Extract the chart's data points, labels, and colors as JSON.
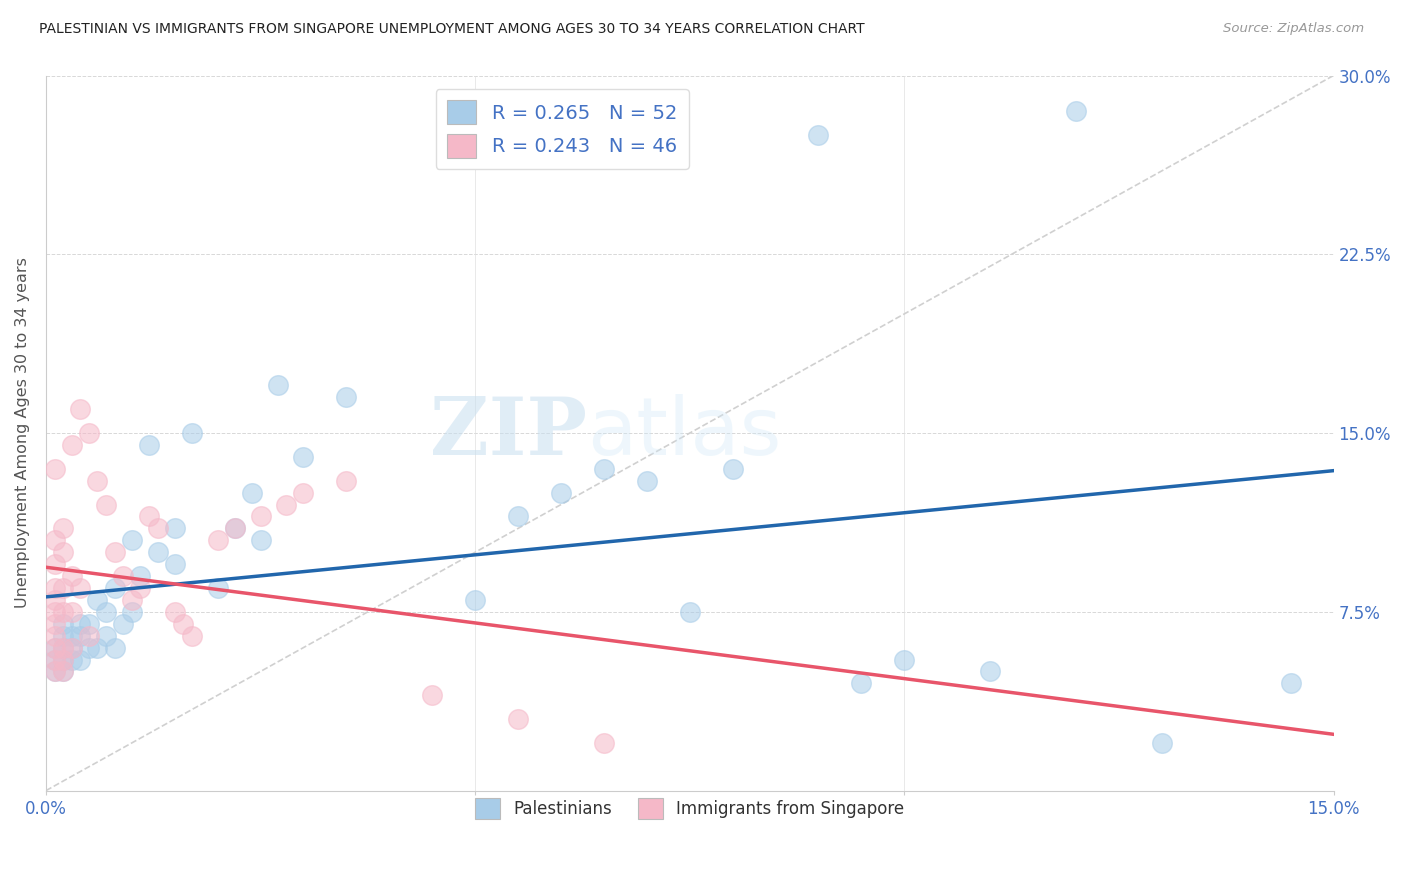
{
  "title": "PALESTINIAN VS IMMIGRANTS FROM SINGAPORE UNEMPLOYMENT AMONG AGES 30 TO 34 YEARS CORRELATION CHART",
  "source": "Source: ZipAtlas.com",
  "ylabel": "Unemployment Among Ages 30 to 34 years",
  "xlim": [
    0.0,
    15.0
  ],
  "ylim": [
    0.0,
    30.0
  ],
  "legend1_R": "R = 0.265",
  "legend1_N": "N = 52",
  "legend2_R": "R = 0.243",
  "legend2_N": "N = 46",
  "blue_color": "#a8cce8",
  "pink_color": "#f5b8c8",
  "blue_line_color": "#2166ac",
  "pink_line_color": "#e8556a",
  "watermark_zip": "ZIP",
  "watermark_atlas": "atlas",
  "palestinians_x": [
    0.1,
    0.1,
    0.1,
    0.2,
    0.2,
    0.2,
    0.2,
    0.2,
    0.3,
    0.3,
    0.3,
    0.4,
    0.4,
    0.4,
    0.5,
    0.5,
    0.6,
    0.6,
    0.7,
    0.7,
    0.8,
    0.8,
    0.9,
    1.0,
    1.0,
    1.1,
    1.2,
    1.3,
    1.5,
    1.5,
    1.7,
    2.0,
    2.2,
    2.4,
    2.5,
    2.7,
    3.0,
    3.5,
    5.0,
    5.5,
    6.0,
    6.5,
    7.0,
    7.5,
    8.0,
    9.0,
    9.5,
    10.0,
    11.0,
    12.0,
    13.0,
    14.5
  ],
  "palestinians_y": [
    5.0,
    5.5,
    6.0,
    5.0,
    5.5,
    6.0,
    6.5,
    7.0,
    5.5,
    6.0,
    6.5,
    5.5,
    6.5,
    7.0,
    6.0,
    7.0,
    6.0,
    8.0,
    6.5,
    7.5,
    6.0,
    8.5,
    7.0,
    7.5,
    10.5,
    9.0,
    14.5,
    10.0,
    9.5,
    11.0,
    15.0,
    8.5,
    11.0,
    12.5,
    10.5,
    17.0,
    14.0,
    16.5,
    8.0,
    11.5,
    12.5,
    13.5,
    13.0,
    7.5,
    13.5,
    27.5,
    4.5,
    5.5,
    5.0,
    28.5,
    2.0,
    4.5
  ],
  "singapore_x": [
    0.1,
    0.1,
    0.1,
    0.1,
    0.1,
    0.1,
    0.1,
    0.1,
    0.1,
    0.1,
    0.1,
    0.2,
    0.2,
    0.2,
    0.2,
    0.2,
    0.2,
    0.2,
    0.3,
    0.3,
    0.3,
    0.3,
    0.4,
    0.4,
    0.5,
    0.5,
    0.6,
    0.7,
    0.8,
    0.9,
    1.0,
    1.1,
    1.2,
    1.3,
    1.5,
    1.6,
    1.7,
    2.0,
    2.2,
    2.5,
    2.8,
    3.0,
    3.5,
    4.5,
    5.5,
    6.5
  ],
  "singapore_y": [
    5.0,
    5.5,
    6.0,
    6.5,
    7.0,
    7.5,
    8.0,
    8.5,
    9.5,
    10.5,
    13.5,
    5.0,
    5.5,
    6.0,
    7.5,
    8.5,
    10.0,
    11.0,
    6.0,
    7.5,
    9.0,
    14.5,
    8.5,
    16.0,
    6.5,
    15.0,
    13.0,
    12.0,
    10.0,
    9.0,
    8.0,
    8.5,
    11.5,
    11.0,
    7.5,
    7.0,
    6.5,
    10.5,
    11.0,
    11.5,
    12.0,
    12.5,
    13.0,
    4.0,
    3.0,
    2.0
  ]
}
